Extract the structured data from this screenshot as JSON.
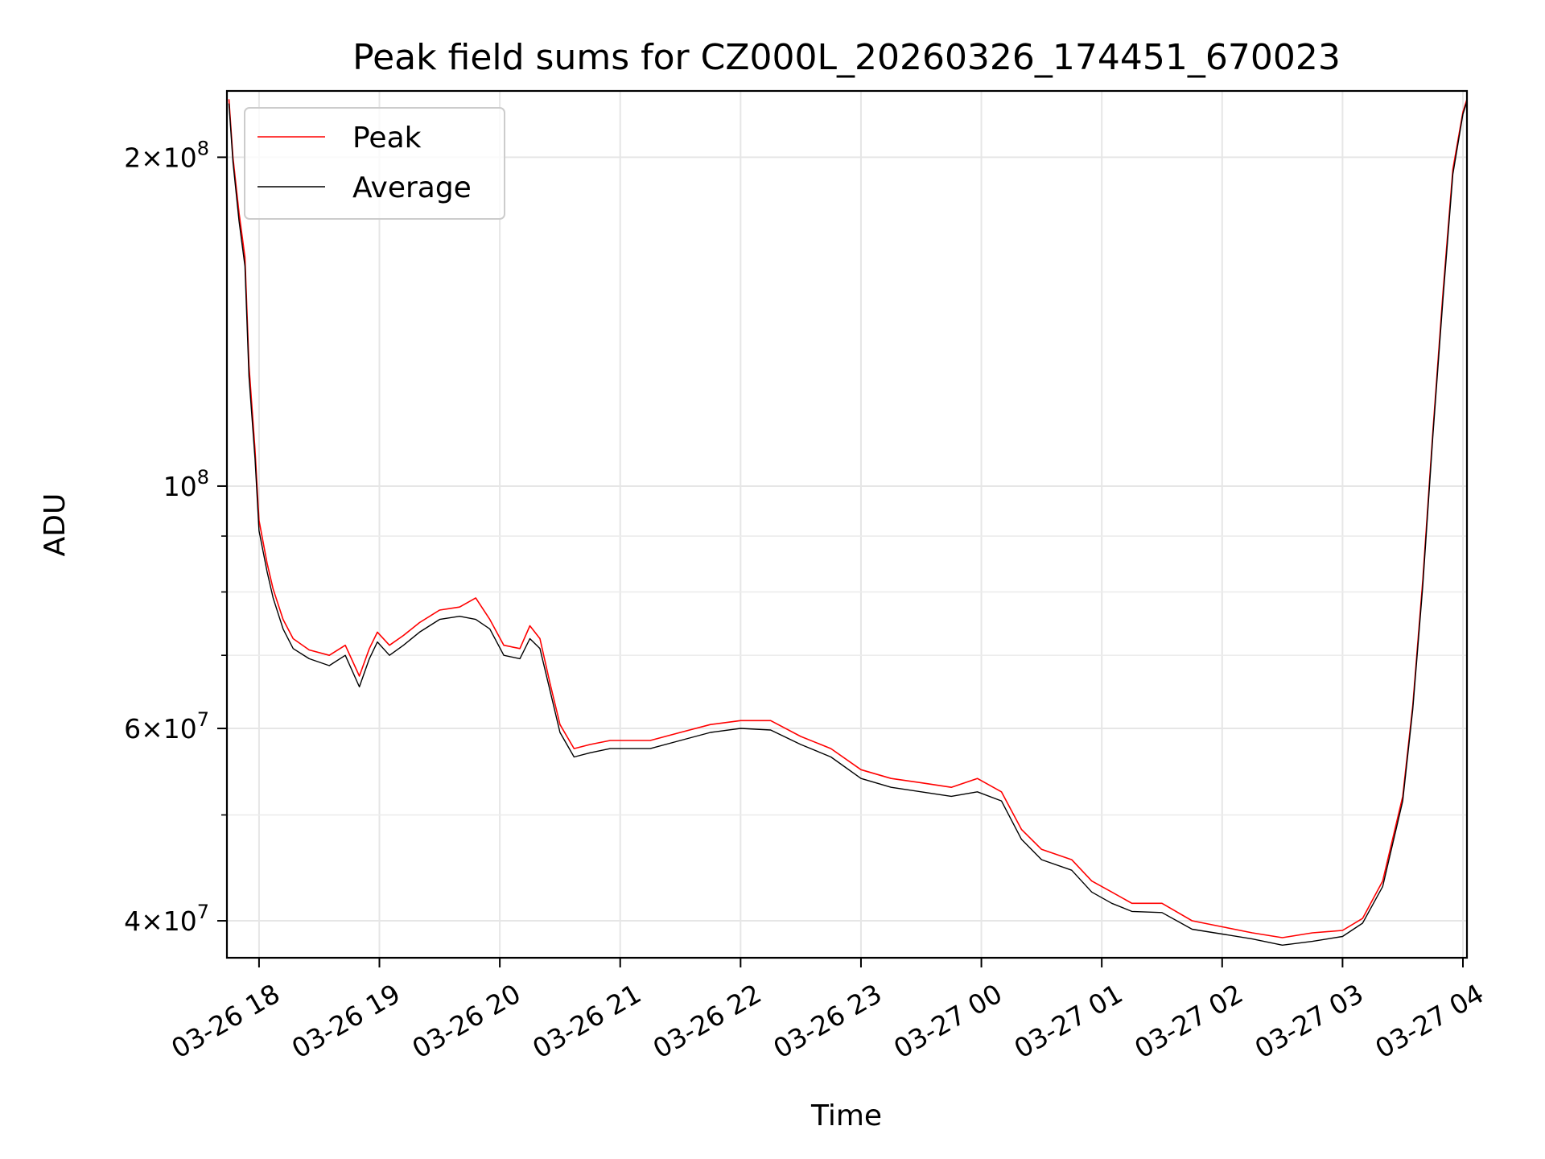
{
  "chart_data": {
    "type": "line",
    "title": "Peak field sums for CZ000L_20260326_174451_670023",
    "xlabel": "Time",
    "ylabel": "ADU",
    "yscale": "log",
    "grid": true,
    "legend_position": "top-left",
    "xlim": [
      "2026-03-26 17:44",
      "2026-03-27 04:02"
    ],
    "ylim": [
      37000000,
      230000000
    ],
    "x_ticks": [
      {
        "t": "2026-03-26 18:00",
        "label": "03-26 18"
      },
      {
        "t": "2026-03-26 19:00",
        "label": "03-26 19"
      },
      {
        "t": "2026-03-26 20:00",
        "label": "03-26 20"
      },
      {
        "t": "2026-03-26 21:00",
        "label": "03-26 21"
      },
      {
        "t": "2026-03-26 22:00",
        "label": "03-26 22"
      },
      {
        "t": "2026-03-26 23:00",
        "label": "03-26 23"
      },
      {
        "t": "2026-03-27 00:00",
        "label": "03-27 00"
      },
      {
        "t": "2026-03-27 01:00",
        "label": "03-27 01"
      },
      {
        "t": "2026-03-27 02:00",
        "label": "03-27 02"
      },
      {
        "t": "2026-03-27 03:00",
        "label": "03-27 03"
      },
      {
        "t": "2026-03-27 04:00",
        "label": "03-27 04"
      }
    ],
    "y_major_ticks": [
      {
        "v": 40000000,
        "base": "4×10",
        "exp": "7"
      },
      {
        "v": 60000000,
        "base": "6×10",
        "exp": "7"
      },
      {
        "v": 100000000,
        "base": "10",
        "exp": "8"
      },
      {
        "v": 200000000,
        "base": "2×10",
        "exp": "8"
      }
    ],
    "y_minor_ticks": [
      50000000,
      70000000,
      80000000,
      90000000
    ],
    "series": [
      {
        "name": "Peak",
        "color": "#ff0000",
        "points": [
          [
            "2026-03-26 17:45",
            226000000
          ],
          [
            "2026-03-26 17:47",
            200000000
          ],
          [
            "2026-03-26 17:50",
            178000000
          ],
          [
            "2026-03-26 17:53",
            162000000
          ],
          [
            "2026-03-26 17:55",
            129000000
          ],
          [
            "2026-03-26 17:58",
            108000000
          ],
          [
            "2026-03-26 18:00",
            93000000
          ],
          [
            "2026-03-26 18:04",
            85000000
          ],
          [
            "2026-03-26 18:07",
            80500000
          ],
          [
            "2026-03-26 18:12",
            75500000
          ],
          [
            "2026-03-26 18:17",
            72500000
          ],
          [
            "2026-03-26 18:25",
            70800000
          ],
          [
            "2026-03-26 18:35",
            70000000
          ],
          [
            "2026-03-26 18:43",
            71500000
          ],
          [
            "2026-03-26 18:50",
            67000000
          ],
          [
            "2026-03-26 18:55",
            71000000
          ],
          [
            "2026-03-26 18:59",
            73500000
          ],
          [
            "2026-03-26 19:05",
            71500000
          ],
          [
            "2026-03-26 19:12",
            73000000
          ],
          [
            "2026-03-26 19:20",
            75000000
          ],
          [
            "2026-03-26 19:30",
            77000000
          ],
          [
            "2026-03-26 19:40",
            77500000
          ],
          [
            "2026-03-26 19:48",
            79000000
          ],
          [
            "2026-03-26 19:55",
            75500000
          ],
          [
            "2026-03-26 20:02",
            71500000
          ],
          [
            "2026-03-26 20:10",
            71000000
          ],
          [
            "2026-03-26 20:15",
            74500000
          ],
          [
            "2026-03-26 20:20",
            72500000
          ],
          [
            "2026-03-26 20:25",
            66000000
          ],
          [
            "2026-03-26 20:30",
            60500000
          ],
          [
            "2026-03-26 20:37",
            57500000
          ],
          [
            "2026-03-26 20:45",
            58000000
          ],
          [
            "2026-03-26 20:55",
            58500000
          ],
          [
            "2026-03-26 21:05",
            58500000
          ],
          [
            "2026-03-26 21:15",
            58500000
          ],
          [
            "2026-03-26 21:30",
            59500000
          ],
          [
            "2026-03-26 21:45",
            60500000
          ],
          [
            "2026-03-26 22:00",
            61000000
          ],
          [
            "2026-03-26 22:15",
            61000000
          ],
          [
            "2026-03-26 22:30",
            59000000
          ],
          [
            "2026-03-26 22:45",
            57500000
          ],
          [
            "2026-03-26 23:00",
            55000000
          ],
          [
            "2026-03-26 23:15",
            54000000
          ],
          [
            "2026-03-26 23:30",
            53500000
          ],
          [
            "2026-03-26 23:45",
            53000000
          ],
          [
            "2026-03-26 23:58",
            54000000
          ],
          [
            "2026-03-27 00:10",
            52500000
          ],
          [
            "2026-03-27 00:20",
            48500000
          ],
          [
            "2026-03-27 00:30",
            46500000
          ],
          [
            "2026-03-27 00:45",
            45500000
          ],
          [
            "2026-03-27 00:55",
            43500000
          ],
          [
            "2026-03-27 01:05",
            42500000
          ],
          [
            "2026-03-27 01:15",
            41500000
          ],
          [
            "2026-03-27 01:30",
            41500000
          ],
          [
            "2026-03-27 01:45",
            40000000
          ],
          [
            "2026-03-27 02:00",
            39500000
          ],
          [
            "2026-03-27 02:15",
            39000000
          ],
          [
            "2026-03-27 02:30",
            38600000
          ],
          [
            "2026-03-27 02:45",
            39000000
          ],
          [
            "2026-03-27 03:00",
            39200000
          ],
          [
            "2026-03-27 03:10",
            40200000
          ],
          [
            "2026-03-27 03:20",
            43500000
          ],
          [
            "2026-03-27 03:30",
            52000000
          ],
          [
            "2026-03-27 03:35",
            63000000
          ],
          [
            "2026-03-27 03:40",
            82000000
          ],
          [
            "2026-03-27 03:45",
            112000000
          ],
          [
            "2026-03-27 03:50",
            150000000
          ],
          [
            "2026-03-27 03:55",
            195000000
          ],
          [
            "2026-03-27 04:00",
            220000000
          ],
          [
            "2026-03-27 04:02",
            226000000
          ]
        ]
      },
      {
        "name": "Average",
        "color": "#000000",
        "points": [
          [
            "2026-03-26 17:45",
            224000000
          ],
          [
            "2026-03-26 17:47",
            198000000
          ],
          [
            "2026-03-26 17:50",
            175000000
          ],
          [
            "2026-03-26 17:53",
            159000000
          ],
          [
            "2026-03-26 17:55",
            126000000
          ],
          [
            "2026-03-26 17:58",
            106000000
          ],
          [
            "2026-03-26 18:00",
            91000000
          ],
          [
            "2026-03-26 18:04",
            83500000
          ],
          [
            "2026-03-26 18:07",
            79000000
          ],
          [
            "2026-03-26 18:12",
            74000000
          ],
          [
            "2026-03-26 18:17",
            71000000
          ],
          [
            "2026-03-26 18:25",
            69500000
          ],
          [
            "2026-03-26 18:35",
            68500000
          ],
          [
            "2026-03-26 18:43",
            70000000
          ],
          [
            "2026-03-26 18:50",
            65500000
          ],
          [
            "2026-03-26 18:55",
            69500000
          ],
          [
            "2026-03-26 18:59",
            72000000
          ],
          [
            "2026-03-26 19:05",
            70000000
          ],
          [
            "2026-03-26 19:12",
            71500000
          ],
          [
            "2026-03-26 19:20",
            73500000
          ],
          [
            "2026-03-26 19:30",
            75500000
          ],
          [
            "2026-03-26 19:40",
            76000000
          ],
          [
            "2026-03-26 19:48",
            75500000
          ],
          [
            "2026-03-26 19:55",
            74000000
          ],
          [
            "2026-03-26 20:02",
            70000000
          ],
          [
            "2026-03-26 20:10",
            69500000
          ],
          [
            "2026-03-26 20:15",
            72500000
          ],
          [
            "2026-03-26 20:20",
            71000000
          ],
          [
            "2026-03-26 20:25",
            65000000
          ],
          [
            "2026-03-26 20:30",
            59500000
          ],
          [
            "2026-03-26 20:37",
            56500000
          ],
          [
            "2026-03-26 20:45",
            57000000
          ],
          [
            "2026-03-26 20:55",
            57500000
          ],
          [
            "2026-03-26 21:05",
            57500000
          ],
          [
            "2026-03-26 21:15",
            57500000
          ],
          [
            "2026-03-26 21:30",
            58500000
          ],
          [
            "2026-03-26 21:45",
            59500000
          ],
          [
            "2026-03-26 22:00",
            60000000
          ],
          [
            "2026-03-26 22:15",
            59800000
          ],
          [
            "2026-03-26 22:30",
            58000000
          ],
          [
            "2026-03-26 22:45",
            56500000
          ],
          [
            "2026-03-26 23:00",
            54000000
          ],
          [
            "2026-03-26 23:15",
            53000000
          ],
          [
            "2026-03-26 23:30",
            52500000
          ],
          [
            "2026-03-26 23:45",
            52000000
          ],
          [
            "2026-03-26 23:58",
            52500000
          ],
          [
            "2026-03-27 00:10",
            51500000
          ],
          [
            "2026-03-27 00:20",
            47500000
          ],
          [
            "2026-03-27 00:30",
            45500000
          ],
          [
            "2026-03-27 00:45",
            44500000
          ],
          [
            "2026-03-27 00:55",
            42500000
          ],
          [
            "2026-03-27 01:05",
            41500000
          ],
          [
            "2026-03-27 01:15",
            40800000
          ],
          [
            "2026-03-27 01:30",
            40700000
          ],
          [
            "2026-03-27 01:45",
            39300000
          ],
          [
            "2026-03-27 02:00",
            38900000
          ],
          [
            "2026-03-27 02:15",
            38500000
          ],
          [
            "2026-03-27 02:30",
            38000000
          ],
          [
            "2026-03-27 02:45",
            38300000
          ],
          [
            "2026-03-27 03:00",
            38700000
          ],
          [
            "2026-03-27 03:10",
            39800000
          ],
          [
            "2026-03-27 03:20",
            43000000
          ],
          [
            "2026-03-27 03:30",
            51500000
          ],
          [
            "2026-03-27 03:35",
            62500000
          ],
          [
            "2026-03-27 03:40",
            81000000
          ],
          [
            "2026-03-27 03:45",
            111000000
          ],
          [
            "2026-03-27 03:50",
            148000000
          ],
          [
            "2026-03-27 03:55",
            193000000
          ],
          [
            "2026-03-27 04:00",
            219000000
          ],
          [
            "2026-03-27 04:02",
            225000000
          ]
        ]
      }
    ]
  }
}
